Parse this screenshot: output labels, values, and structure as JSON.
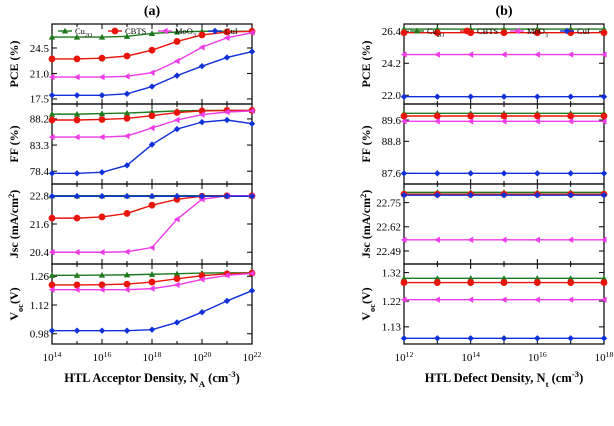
{
  "chart_data": [
    {
      "type": "line",
      "title": "(a)",
      "xlabel": "HTL Acceptor Density, N_A (cm^-3)",
      "x_scale": "log",
      "x": [
        14,
        15,
        16,
        17,
        18,
        19,
        20,
        21,
        22
      ],
      "xlim": [
        14,
        22
      ],
      "x_ticks": [
        14,
        16,
        18,
        20,
        22
      ],
      "legend": [
        "Cu2O",
        "CBTS",
        "MoO3",
        "CuI"
      ],
      "subplots": [
        {
          "ylabel": "PCE (%)",
          "ylim": [
            16.8,
            27.8
          ],
          "y_ticks": [
            "17.5",
            "21.0",
            "24.5"
          ],
          "y_tick_values": [
            17.5,
            21.0,
            24.5
          ],
          "series": [
            {
              "name": "Cu2O",
              "values": [
                26.0,
                26.0,
                26.0,
                26.1,
                26.5,
                26.7,
                26.8,
                26.8,
                26.8
              ]
            },
            {
              "name": "CBTS",
              "values": [
                23.0,
                23.0,
                23.1,
                23.4,
                24.2,
                25.4,
                26.3,
                26.7,
                26.8
              ]
            },
            {
              "name": "MoO3",
              "values": [
                20.5,
                20.5,
                20.5,
                20.6,
                21.1,
                22.7,
                24.6,
                25.9,
                26.6
              ]
            },
            {
              "name": "CuI",
              "values": [
                18.0,
                18.0,
                18.0,
                18.2,
                19.2,
                20.7,
                22.0,
                23.2,
                24.0
              ]
            }
          ]
        },
        {
          "ylabel": "FF (%)",
          "ylim": [
            76.0,
            91.0
          ],
          "y_ticks": [
            "78.4",
            "83.3",
            "88.2"
          ],
          "y_tick_values": [
            78.4,
            83.3,
            88.2
          ],
          "series": [
            {
              "name": "Cu2O",
              "values": [
                89.1,
                89.1,
                89.2,
                89.3,
                89.5,
                89.7,
                89.8,
                89.8,
                89.8
              ]
            },
            {
              "name": "CBTS",
              "values": [
                88.0,
                88.0,
                88.1,
                88.3,
                88.8,
                89.4,
                89.7,
                89.8,
                89.8
              ]
            },
            {
              "name": "MoO3",
              "values": [
                84.8,
                84.8,
                84.8,
                85.0,
                86.5,
                88.0,
                89.0,
                89.5,
                89.7
              ]
            },
            {
              "name": "CuI",
              "values": [
                78.0,
                78.0,
                78.2,
                79.5,
                83.4,
                86.3,
                87.6,
                88.0,
                87.3
              ]
            }
          ]
        },
        {
          "ylabel": "Jsc (mA/cm^2)",
          "ylim": [
            19.9,
            23.3
          ],
          "y_ticks": [
            "20.4",
            "21.6",
            "22.8"
          ],
          "y_tick_values": [
            20.4,
            21.6,
            22.8
          ],
          "series": [
            {
              "name": "Cu2O",
              "values": [
                22.8,
                22.8,
                22.8,
                22.8,
                22.8,
                22.8,
                22.8,
                22.8,
                22.8
              ]
            },
            {
              "name": "CBTS",
              "values": [
                21.85,
                21.85,
                21.9,
                22.05,
                22.4,
                22.65,
                22.78,
                22.8,
                22.8
              ]
            },
            {
              "name": "MoO3",
              "values": [
                20.4,
                20.4,
                20.4,
                20.42,
                20.6,
                21.8,
                22.65,
                22.8,
                22.8
              ]
            },
            {
              "name": "CuI",
              "values": [
                22.78,
                22.78,
                22.78,
                22.78,
                22.78,
                22.78,
                22.78,
                22.78,
                22.78
              ]
            }
          ]
        },
        {
          "ylabel": "Voc (V)",
          "ylim": [
            0.93,
            1.32
          ],
          "y_ticks": [
            "0.98",
            "1.12",
            "1.26"
          ],
          "y_tick_values": [
            0.98,
            1.12,
            1.26
          ],
          "series": [
            {
              "name": "Cu2O",
              "values": [
                1.265,
                1.265,
                1.266,
                1.267,
                1.27,
                1.273,
                1.276,
                1.277,
                1.277
              ]
            },
            {
              "name": "CBTS",
              "values": [
                1.218,
                1.218,
                1.219,
                1.222,
                1.232,
                1.248,
                1.263,
                1.272,
                1.276
              ]
            },
            {
              "name": "MoO3",
              "values": [
                1.195,
                1.195,
                1.195,
                1.195,
                1.2,
                1.218,
                1.245,
                1.265,
                1.274
              ]
            },
            {
              "name": "CuI",
              "values": [
                0.995,
                0.995,
                0.995,
                0.995,
                1.0,
                1.035,
                1.085,
                1.14,
                1.19
              ]
            }
          ]
        }
      ]
    },
    {
      "type": "line",
      "title": "(b)",
      "xlabel": "HTL Defect Density, N_t (cm^-3)",
      "x_scale": "log",
      "x": [
        12,
        13,
        14,
        15,
        16,
        17,
        18
      ],
      "xlim": [
        12,
        18
      ],
      "x_ticks": [
        12,
        14,
        16,
        18
      ],
      "legend": [
        "Cu2O",
        "CBTS",
        "MoO3",
        "CuI"
      ],
      "subplots": [
        {
          "ylabel": "PCE (%)",
          "ylim": [
            21.4,
            26.9
          ],
          "y_ticks": [
            "22.0",
            "24.2",
            "26.4"
          ],
          "y_tick_values": [
            22.0,
            24.2,
            26.4
          ],
          "series": [
            {
              "name": "Cu2O",
              "values": [
                26.55,
                26.55,
                26.55,
                26.55,
                26.55,
                26.55,
                26.55
              ]
            },
            {
              "name": "CBTS",
              "values": [
                26.3,
                26.3,
                26.3,
                26.3,
                26.3,
                26.3,
                26.3
              ]
            },
            {
              "name": "MoO3",
              "values": [
                24.8,
                24.8,
                24.8,
                24.8,
                24.8,
                24.8,
                24.8
              ]
            },
            {
              "name": "CuI",
              "values": [
                21.9,
                21.9,
                21.9,
                21.9,
                21.9,
                21.9,
                21.9
              ]
            }
          ]
        },
        {
          "ylabel": "FF (%)",
          "ylim": [
            87.2,
            90.2
          ],
          "y_ticks": [
            "87.6",
            "88.8",
            "89.6"
          ],
          "y_tick_values": [
            87.6,
            88.8,
            89.6
          ],
          "series": [
            {
              "name": "Cu2O",
              "values": [
                89.85,
                89.85,
                89.85,
                89.85,
                89.85,
                89.85,
                89.85
              ]
            },
            {
              "name": "CBTS",
              "values": [
                89.75,
                89.75,
                89.75,
                89.75,
                89.75,
                89.75,
                89.75
              ]
            },
            {
              "name": "MoO3",
              "values": [
                89.55,
                89.55,
                89.55,
                89.55,
                89.55,
                89.55,
                89.55
              ]
            },
            {
              "name": "CuI",
              "values": [
                87.6,
                87.6,
                87.6,
                87.6,
                87.6,
                87.6,
                87.6
              ]
            }
          ]
        },
        {
          "ylabel": "Jsc (mA/cm^2)",
          "ylim": [
            22.42,
            22.85
          ],
          "y_ticks": [
            "22.49",
            "22.62",
            "22.75"
          ],
          "y_tick_values": [
            22.49,
            22.62,
            22.75
          ],
          "series": [
            {
              "name": "Cu2O",
              "values": [
                22.805,
                22.805,
                22.805,
                22.805,
                22.805,
                22.805,
                22.805
              ]
            },
            {
              "name": "CBTS",
              "values": [
                22.795,
                22.795,
                22.795,
                22.795,
                22.795,
                22.795,
                22.795
              ]
            },
            {
              "name": "MoO3",
              "values": [
                22.55,
                22.55,
                22.55,
                22.55,
                22.55,
                22.55,
                22.55
              ]
            },
            {
              "name": "CuI",
              "values": [
                22.79,
                22.79,
                22.79,
                22.79,
                22.79,
                22.79,
                22.79
              ]
            }
          ]
        },
        {
          "ylabel": "Voc (V)",
          "ylim": [
            1.07,
            1.35
          ],
          "y_ticks": [
            "1.13",
            "1.22",
            "1.32"
          ],
          "y_tick_values": [
            1.13,
            1.22,
            1.32
          ],
          "series": [
            {
              "name": "Cu2O",
              "values": [
                1.3,
                1.3,
                1.3,
                1.3,
                1.3,
                1.3,
                1.3
              ]
            },
            {
              "name": "CBTS",
              "values": [
                1.285,
                1.285,
                1.285,
                1.285,
                1.285,
                1.285,
                1.285
              ]
            },
            {
              "name": "MoO3",
              "values": [
                1.225,
                1.225,
                1.225,
                1.225,
                1.225,
                1.225,
                1.225
              ]
            },
            {
              "name": "CuI",
              "values": [
                1.09,
                1.09,
                1.09,
                1.09,
                1.09,
                1.09,
                1.09
              ]
            }
          ]
        }
      ]
    }
  ],
  "series_colors": {
    "Cu2O": "#1f7a1f",
    "CBTS": "#e8150c",
    "MoO3": "#ee3ce8",
    "CuI": "#1030d8"
  },
  "series_markers": {
    "Cu2O": "triangle",
    "CBTS": "circle",
    "MoO3": "triangle-left",
    "CuI": "diamond"
  }
}
